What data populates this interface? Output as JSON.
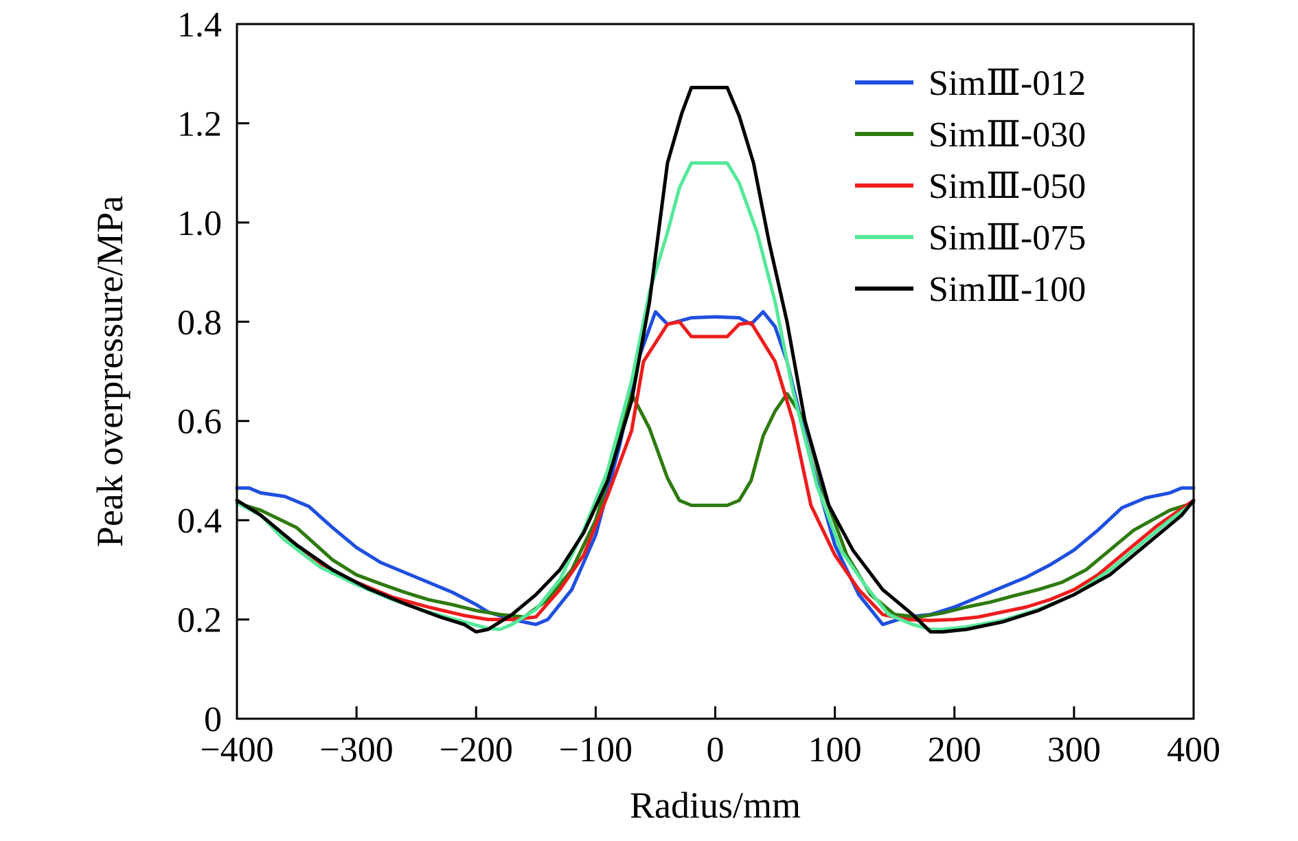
{
  "chart_data": {
    "type": "line",
    "xlabel": "Radius/mm",
    "ylabel": "Peak overpressure/MPa",
    "xlim": [
      -400,
      400
    ],
    "ylim": [
      0,
      1.4
    ],
    "xticks": [
      -400,
      -300,
      -200,
      -100,
      0,
      100,
      200,
      300,
      400
    ],
    "xtick_labels": [
      "−400",
      "−300",
      "−200",
      "−100",
      "0",
      "100",
      "200",
      "300",
      "400"
    ],
    "yticks": [
      0,
      0.2,
      0.4,
      0.6,
      0.8,
      1.0,
      1.2,
      1.4
    ],
    "ytick_labels": [
      "0",
      "0.2",
      "0.4",
      "0.6",
      "0.8",
      "1.0",
      "1.2",
      "1.4"
    ],
    "grid": false,
    "legend_position": "top-right",
    "series": [
      {
        "name": "SimⅢ-012",
        "color": "#1f4fe0",
        "points": [
          [
            -400,
            0.465
          ],
          [
            -390,
            0.465
          ],
          [
            -380,
            0.455
          ],
          [
            -360,
            0.448
          ],
          [
            -340,
            0.428
          ],
          [
            -320,
            0.385
          ],
          [
            -300,
            0.345
          ],
          [
            -280,
            0.315
          ],
          [
            -260,
            0.295
          ],
          [
            -240,
            0.275
          ],
          [
            -220,
            0.255
          ],
          [
            -200,
            0.23
          ],
          [
            -190,
            0.215
          ],
          [
            -170,
            0.2
          ],
          [
            -150,
            0.19
          ],
          [
            -140,
            0.2
          ],
          [
            -120,
            0.26
          ],
          [
            -100,
            0.37
          ],
          [
            -80,
            0.55
          ],
          [
            -65,
            0.72
          ],
          [
            -50,
            0.82
          ],
          [
            -40,
            0.795
          ],
          [
            -20,
            0.808
          ],
          [
            0,
            0.81
          ],
          [
            20,
            0.808
          ],
          [
            30,
            0.795
          ],
          [
            40,
            0.82
          ],
          [
            50,
            0.79
          ],
          [
            60,
            0.72
          ],
          [
            80,
            0.52
          ],
          [
            100,
            0.35
          ],
          [
            120,
            0.25
          ],
          [
            140,
            0.19
          ],
          [
            160,
            0.205
          ],
          [
            180,
            0.21
          ],
          [
            200,
            0.225
          ],
          [
            220,
            0.245
          ],
          [
            240,
            0.265
          ],
          [
            260,
            0.285
          ],
          [
            280,
            0.31
          ],
          [
            300,
            0.34
          ],
          [
            320,
            0.38
          ],
          [
            340,
            0.425
          ],
          [
            360,
            0.445
          ],
          [
            380,
            0.455
          ],
          [
            390,
            0.465
          ],
          [
            400,
            0.465
          ]
        ]
      },
      {
        "name": "SimⅢ-030",
        "color": "#2e7a0f",
        "points": [
          [
            -400,
            0.435
          ],
          [
            -380,
            0.42
          ],
          [
            -350,
            0.385
          ],
          [
            -320,
            0.32
          ],
          [
            -300,
            0.29
          ],
          [
            -280,
            0.272
          ],
          [
            -260,
            0.255
          ],
          [
            -240,
            0.24
          ],
          [
            -220,
            0.23
          ],
          [
            -200,
            0.218
          ],
          [
            -180,
            0.21
          ],
          [
            -160,
            0.205
          ],
          [
            -140,
            0.24
          ],
          [
            -120,
            0.3
          ],
          [
            -100,
            0.4
          ],
          [
            -85,
            0.52
          ],
          [
            -70,
            0.655
          ],
          [
            -55,
            0.585
          ],
          [
            -40,
            0.485
          ],
          [
            -30,
            0.44
          ],
          [
            -20,
            0.43
          ],
          [
            0,
            0.43
          ],
          [
            10,
            0.43
          ],
          [
            20,
            0.44
          ],
          [
            30,
            0.48
          ],
          [
            40,
            0.57
          ],
          [
            50,
            0.62
          ],
          [
            60,
            0.655
          ],
          [
            75,
            0.6
          ],
          [
            90,
            0.46
          ],
          [
            110,
            0.33
          ],
          [
            130,
            0.25
          ],
          [
            150,
            0.21
          ],
          [
            170,
            0.205
          ],
          [
            190,
            0.213
          ],
          [
            210,
            0.225
          ],
          [
            230,
            0.235
          ],
          [
            250,
            0.248
          ],
          [
            270,
            0.26
          ],
          [
            290,
            0.275
          ],
          [
            310,
            0.3
          ],
          [
            330,
            0.34
          ],
          [
            350,
            0.38
          ],
          [
            380,
            0.42
          ],
          [
            400,
            0.435
          ]
        ]
      },
      {
        "name": "SimⅢ-050",
        "color": "#ee1c1c",
        "points": [
          [
            -400,
            0.44
          ],
          [
            -380,
            0.41
          ],
          [
            -360,
            0.36
          ],
          [
            -330,
            0.31
          ],
          [
            -300,
            0.275
          ],
          [
            -270,
            0.245
          ],
          [
            -240,
            0.225
          ],
          [
            -210,
            0.208
          ],
          [
            -190,
            0.2
          ],
          [
            -170,
            0.2
          ],
          [
            -150,
            0.205
          ],
          [
            -130,
            0.26
          ],
          [
            -110,
            0.33
          ],
          [
            -90,
            0.45
          ],
          [
            -70,
            0.58
          ],
          [
            -60,
            0.72
          ],
          [
            -40,
            0.795
          ],
          [
            -30,
            0.8
          ],
          [
            -20,
            0.77
          ],
          [
            0,
            0.77
          ],
          [
            10,
            0.77
          ],
          [
            20,
            0.795
          ],
          [
            30,
            0.798
          ],
          [
            50,
            0.72
          ],
          [
            65,
            0.6
          ],
          [
            80,
            0.43
          ],
          [
            100,
            0.33
          ],
          [
            120,
            0.26
          ],
          [
            140,
            0.21
          ],
          [
            160,
            0.2
          ],
          [
            180,
            0.198
          ],
          [
            200,
            0.2
          ],
          [
            220,
            0.205
          ],
          [
            240,
            0.215
          ],
          [
            260,
            0.225
          ],
          [
            280,
            0.24
          ],
          [
            300,
            0.26
          ],
          [
            320,
            0.29
          ],
          [
            340,
            0.33
          ],
          [
            370,
            0.39
          ],
          [
            400,
            0.44
          ]
        ]
      },
      {
        "name": "SimⅢ-075",
        "color": "#55e89a",
        "points": [
          [
            -400,
            0.435
          ],
          [
            -380,
            0.41
          ],
          [
            -360,
            0.36
          ],
          [
            -330,
            0.305
          ],
          [
            -300,
            0.27
          ],
          [
            -270,
            0.24
          ],
          [
            -240,
            0.215
          ],
          [
            -210,
            0.195
          ],
          [
            -190,
            0.182
          ],
          [
            -180,
            0.18
          ],
          [
            -170,
            0.19
          ],
          [
            -150,
            0.22
          ],
          [
            -130,
            0.28
          ],
          [
            -110,
            0.38
          ],
          [
            -90,
            0.5
          ],
          [
            -70,
            0.68
          ],
          [
            -55,
            0.86
          ],
          [
            -40,
            0.98
          ],
          [
            -30,
            1.07
          ],
          [
            -20,
            1.12
          ],
          [
            0,
            1.12
          ],
          [
            10,
            1.12
          ],
          [
            20,
            1.08
          ],
          [
            35,
            0.98
          ],
          [
            50,
            0.84
          ],
          [
            65,
            0.66
          ],
          [
            85,
            0.47
          ],
          [
            105,
            0.34
          ],
          [
            125,
            0.27
          ],
          [
            145,
            0.21
          ],
          [
            165,
            0.19
          ],
          [
            180,
            0.18
          ],
          [
            190,
            0.18
          ],
          [
            210,
            0.185
          ],
          [
            240,
            0.198
          ],
          [
            270,
            0.22
          ],
          [
            300,
            0.25
          ],
          [
            330,
            0.3
          ],
          [
            360,
            0.36
          ],
          [
            380,
            0.4
          ],
          [
            400,
            0.435
          ]
        ]
      },
      {
        "name": "SimⅢ-100",
        "color": "#000000",
        "points": [
          [
            -400,
            0.44
          ],
          [
            -380,
            0.41
          ],
          [
            -350,
            0.35
          ],
          [
            -320,
            0.3
          ],
          [
            -290,
            0.262
          ],
          [
            -260,
            0.232
          ],
          [
            -230,
            0.205
          ],
          [
            -210,
            0.19
          ],
          [
            -200,
            0.175
          ],
          [
            -190,
            0.18
          ],
          [
            -170,
            0.21
          ],
          [
            -150,
            0.25
          ],
          [
            -130,
            0.3
          ],
          [
            -110,
            0.375
          ],
          [
            -90,
            0.48
          ],
          [
            -70,
            0.64
          ],
          [
            -55,
            0.84
          ],
          [
            -40,
            1.12
          ],
          [
            -28,
            1.22
          ],
          [
            -20,
            1.272
          ],
          [
            0,
            1.272
          ],
          [
            10,
            1.272
          ],
          [
            20,
            1.215
          ],
          [
            32,
            1.12
          ],
          [
            45,
            0.96
          ],
          [
            60,
            0.8
          ],
          [
            75,
            0.6
          ],
          [
            95,
            0.43
          ],
          [
            115,
            0.34
          ],
          [
            140,
            0.26
          ],
          [
            165,
            0.21
          ],
          [
            180,
            0.175
          ],
          [
            190,
            0.175
          ],
          [
            210,
            0.18
          ],
          [
            240,
            0.195
          ],
          [
            270,
            0.218
          ],
          [
            300,
            0.25
          ],
          [
            330,
            0.29
          ],
          [
            360,
            0.35
          ],
          [
            390,
            0.41
          ],
          [
            400,
            0.44
          ]
        ]
      }
    ]
  }
}
